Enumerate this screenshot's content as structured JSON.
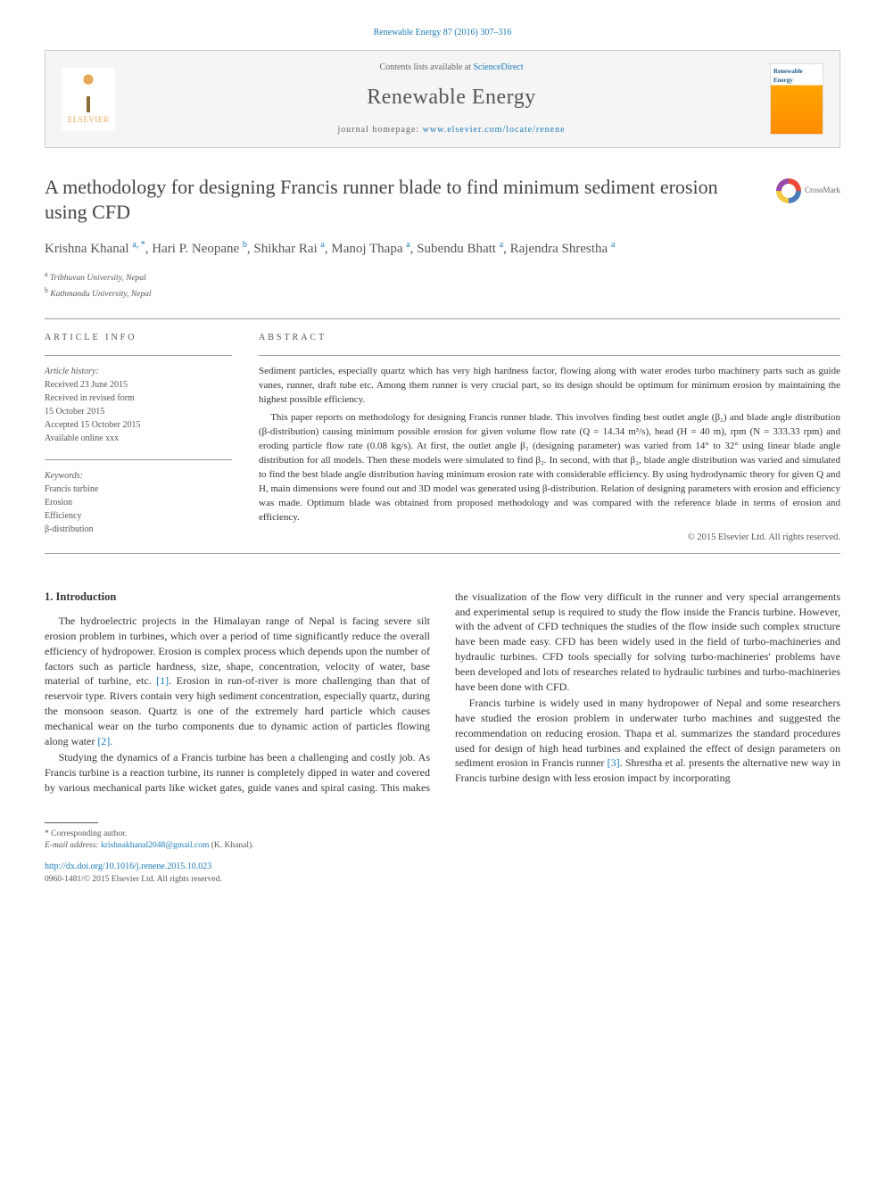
{
  "citation": "Renewable Energy 87 (2016) 307–316",
  "header": {
    "contents_prefix": "Contents lists available at ",
    "contents_link": "ScienceDirect",
    "journal_name": "Renewable Energy",
    "homepage_prefix": "journal homepage: ",
    "homepage_url": "www.elsevier.com/locate/renene",
    "publisher": "ELSEVIER"
  },
  "article": {
    "title": "A methodology for designing Francis runner blade to find minimum sediment erosion using CFD",
    "crossmark_label": "CrossMark",
    "authors_html": "Krishna Khanal <sup>a, *</sup>, Hari P. Neopane <sup>b</sup>, Shikhar Rai <sup>a</sup>, Manoj Thapa <sup>a</sup>, Subendu Bhatt <sup>a</sup>, Rajendra Shrestha <sup>a</sup>",
    "affiliations": [
      {
        "sup": "a",
        "text": "Tribhuvan University, Nepal"
      },
      {
        "sup": "b",
        "text": "Kathmandu University, Nepal"
      }
    ]
  },
  "info": {
    "article_info_header": "ARTICLE INFO",
    "abstract_header": "ABSTRACT",
    "history_label": "Article history:",
    "history_lines": [
      "Received 23 June 2015",
      "Received in revised form",
      "15 October 2015",
      "Accepted 15 October 2015",
      "Available online xxx"
    ],
    "keywords_label": "Keywords:",
    "keywords": [
      "Francis turbine",
      "Erosion",
      "Efficiency",
      "β-distribution"
    ]
  },
  "abstract": {
    "p1": "Sediment particles, especially quartz which has very high hardness factor, flowing along with water erodes turbo machinery parts such as guide vanes, runner, draft tube etc. Among them runner is very crucial part, so its design should be optimum for minimum erosion by maintaining the highest possible efficiency.",
    "p2": "This paper reports on methodology for designing Francis runner blade. This involves finding best outlet angle (β₂) and blade angle distribution (β-distribution) causing minimum possible erosion for given volume flow rate (Q = 14.34 m³/s), head (H = 40 m), rpm (N = 333.33 rpm) and eroding particle flow rate (0.08 kg/s). At first, the outlet angle β₂ (designing parameter) was varied from 14° to 32° using linear blade angle distribution for all models. Then these models were simulated to find β₂. In second, with that β₂, blade angle distribution was varied and simulated to find the best blade angle distribution having minimum erosion rate with considerable efficiency. By using hydrodynamic theory for given Q and H, main dimensions were found out and 3D model was generated using β-distribution. Relation of designing parameters with erosion and efficiency was made. Optimum blade was obtained from proposed methodology and was compared with the reference blade in terms of erosion and efficiency.",
    "copyright": "© 2015 Elsevier Ltd. All rights reserved."
  },
  "body": {
    "section_number": "1.",
    "section_title": "Introduction",
    "p1_a": "The hydroelectric projects in the Himalayan range of Nepal is facing severe silt erosion problem in turbines, which over a period of time significantly reduce the overall efficiency of hydropower. Erosion is complex process which depends upon the number of factors such as particle hardness, size, shape, concentration, velocity of water, base material of turbine, etc. ",
    "ref1": "[1]",
    "p1_b": ". Erosion in run-of-river is more challenging than that of reservoir type. Rivers contain very high sediment concentration, especially quartz, during the monsoon season. Quartz is one of the extremely hard particle which causes mechanical wear on the turbo components due to dynamic action of particles flowing along water ",
    "ref2": "[2]",
    "p1_c": ".",
    "p2": "Studying the dynamics of a Francis turbine has been a challenging and costly job. As Francis turbine is a reaction turbine, its runner is completely dipped in water and covered by various mechanical parts like wicket gates, guide vanes and spiral casing. This makes the visualization of the flow very difficult in the runner and very special arrangements and experimental setup is required to study the flow inside the Francis turbine. However, with the advent of CFD techniques the studies of the flow inside such complex structure have been made easy. CFD has been widely used in the field of turbo-machineries and hydraulic turbines. CFD tools specially for solving turbo-machineries' problems have been developed and lots of researches related to hydraulic turbines and turbo-machineries have been done with CFD.",
    "p3_a": "Francis turbine is widely used in many hydropower of Nepal and some researchers have studied the erosion problem in underwater turbo machines and suggested the recommendation on reducing erosion. Thapa et al. summarizes the standard procedures used for design of high head turbines and explained the effect of design parameters on sediment erosion in Francis runner ",
    "ref3": "[3]",
    "p3_b": ". Shrestha et al. presents the alternative new way in Francis turbine design with less erosion impact by incorporating"
  },
  "footer": {
    "corresponding_label": "* Corresponding author.",
    "email_label": "E-mail address: ",
    "email": "krishnakhanal2048@gmail.com",
    "email_suffix": " (K. Khanal).",
    "doi": "http://dx.doi.org/10.1016/j.renene.2015.10.023",
    "issn_copyright": "0960-1481/© 2015 Elsevier Ltd. All rights reserved."
  },
  "colors": {
    "link": "#1a7bb8",
    "text": "#333333",
    "muted": "#555555",
    "border": "#999999"
  }
}
